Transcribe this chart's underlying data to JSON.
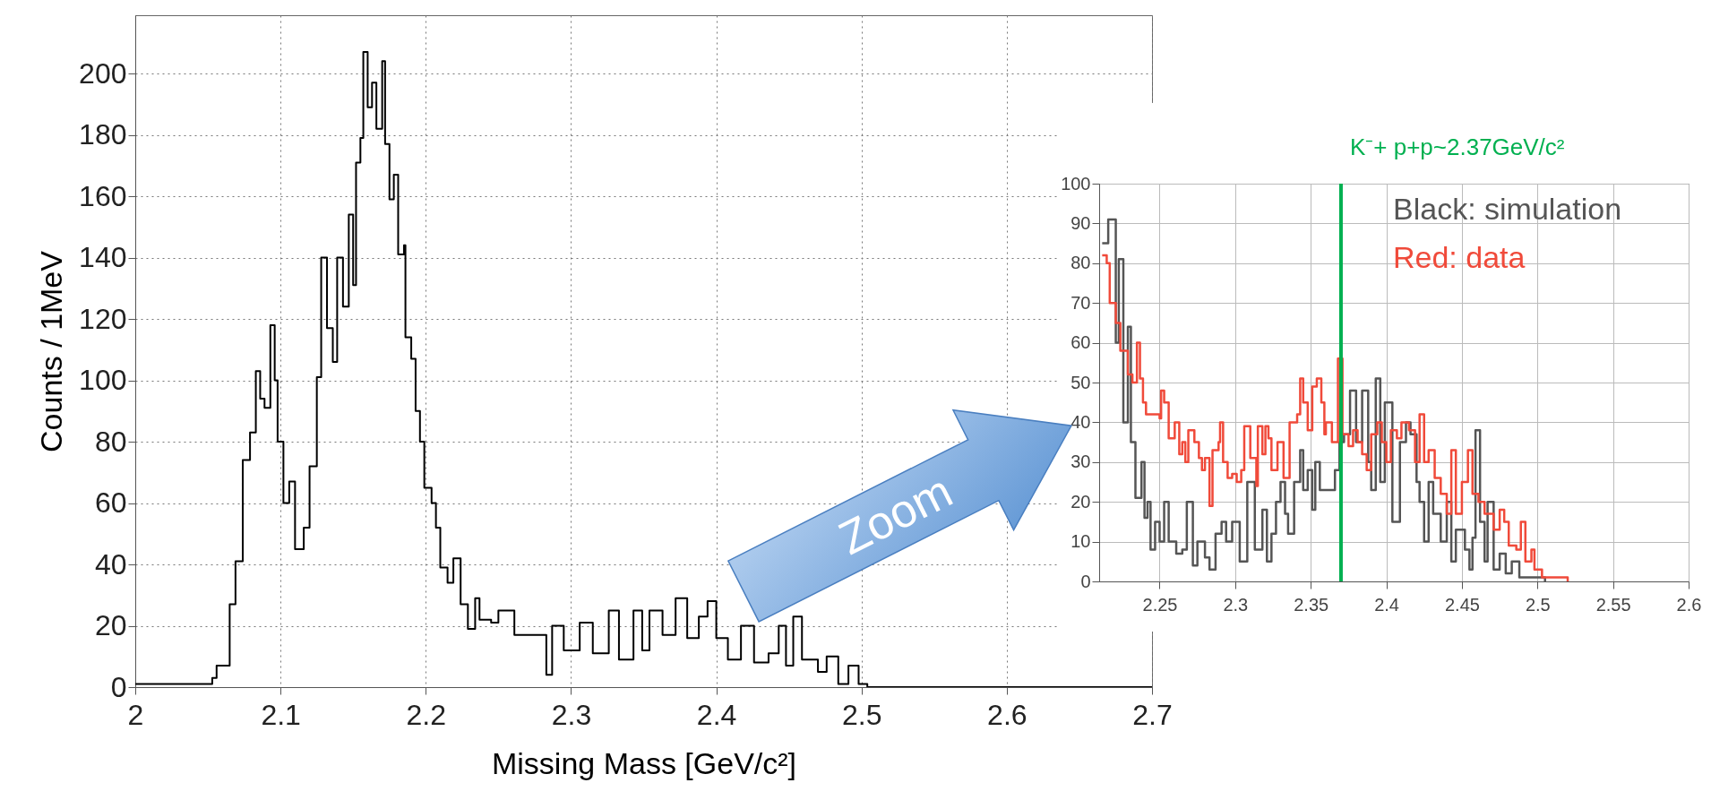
{
  "chart_data": [
    {
      "type": "step",
      "xlabel": "Missing Mass [GeV/c²]",
      "ylabel": "Counts /    1MeV",
      "x": [
        2,
        2.053,
        2.056,
        2.061,
        2.065,
        2.069,
        2.074,
        2.079,
        2.083,
        2.086,
        2.089,
        2.093,
        2.096,
        2.098,
        2.102,
        2.106,
        2.11,
        2.116,
        2.12,
        2.125,
        2.128,
        2.132,
        2.136,
        2.139,
        2.143,
        2.147,
        2.15,
        2.152,
        2.155,
        2.157,
        2.16,
        2.163,
        2.166,
        2.17,
        2.172,
        2.175,
        2.178,
        2.181,
        2.185,
        2.186,
        2.19,
        2.193,
        2.196,
        2.199,
        2.204,
        2.207,
        2.21,
        2.215,
        2.219,
        2.224,
        2.229,
        2.234,
        2.237,
        2.245,
        2.25,
        2.261,
        2.272,
        2.283,
        2.287,
        2.295,
        2.306,
        2.315,
        2.326,
        2.333,
        2.343,
        2.349,
        2.354,
        2.363,
        2.372,
        2.38,
        2.388,
        2.394,
        2.4,
        2.408,
        2.417,
        2.426,
        2.436,
        2.443,
        2.448,
        2.453,
        2.459,
        2.47,
        2.476,
        2.484,
        2.491,
        2.498,
        2.504,
        2.7
      ],
      "series": [
        {
          "color": "#000000",
          "values": [
            1,
            3,
            7,
            7,
            27,
            41,
            74,
            83,
            103,
            94,
            91,
            118,
            100,
            80,
            60,
            67,
            45,
            52,
            72,
            101,
            140,
            117,
            106,
            140,
            124,
            154,
            131,
            171,
            179,
            207,
            189,
            197,
            182,
            204,
            177,
            159,
            167,
            141,
            144,
            114,
            107,
            90,
            80,
            65,
            60,
            52,
            39,
            34,
            42,
            27,
            19,
            29,
            22,
            21,
            25,
            17,
            17,
            4,
            20,
            12,
            21,
            11,
            25,
            9,
            25,
            12,
            25,
            17,
            29,
            16,
            23,
            28,
            16,
            9,
            20,
            8,
            11,
            20,
            7,
            23,
            9,
            5,
            10,
            1,
            7,
            1,
            0,
            0
          ]
        }
      ],
      "xlim": [
        2,
        2.7
      ],
      "xticks": [
        2,
        2.1,
        2.2,
        2.3,
        2.4,
        2.5,
        2.6,
        2.7
      ],
      "ylim": [
        0,
        219
      ],
      "yticks": [
        0,
        20,
        40,
        60,
        80,
        100,
        120,
        140,
        160,
        180,
        200
      ],
      "grid": true,
      "annotations": [
        "Zoom"
      ]
    },
    {
      "type": "step",
      "legend": "top right",
      "series": [
        {
          "name": "Black: simulation",
          "color": "#555555",
          "x": [
            2.212,
            2.216,
            2.221,
            2.223,
            2.226,
            2.229,
            2.231,
            2.234,
            2.238,
            2.24,
            2.242,
            2.244,
            2.247,
            2.25,
            2.253,
            2.256,
            2.261,
            2.265,
            2.268,
            2.272,
            2.275,
            2.28,
            2.283,
            2.287,
            2.291,
            2.294,
            2.298,
            2.303,
            2.308,
            2.313,
            2.318,
            2.321,
            2.324,
            2.327,
            2.33,
            2.333,
            2.335,
            2.339,
            2.343,
            2.345,
            2.348,
            2.351,
            2.353,
            2.356,
            2.361,
            2.366,
            2.369,
            2.372,
            2.376,
            2.38,
            2.384,
            2.388,
            2.39,
            2.393,
            2.396,
            2.399,
            2.404,
            2.409,
            2.413,
            2.416,
            2.42,
            2.422,
            2.425,
            2.428,
            2.431,
            2.436,
            2.44,
            2.443,
            2.446,
            2.452,
            2.455,
            2.457,
            2.459,
            2.462,
            2.465,
            2.467,
            2.471,
            2.475,
            2.479,
            2.483,
            2.488,
            2.492,
            2.496,
            2.5,
            2.505
          ],
          "values": [
            85,
            91,
            60,
            81,
            40,
            64,
            35,
            21,
            30,
            16,
            20,
            8,
            15,
            10,
            20,
            10,
            7,
            8,
            20,
            4,
            10,
            6,
            3,
            12,
            15,
            10,
            15,
            5,
            25,
            8,
            18,
            5,
            12,
            20,
            25,
            17,
            12,
            25,
            33,
            23,
            28,
            18,
            30,
            23,
            23,
            28,
            35,
            37,
            48,
            35,
            48,
            30,
            23,
            51,
            25,
            45,
            15,
            35,
            40,
            37,
            25,
            20,
            10,
            25,
            17,
            10,
            20,
            5,
            13,
            8,
            3,
            11,
            38,
            15,
            5,
            20,
            3,
            7,
            2,
            5,
            1,
            1,
            1,
            1,
            0
          ]
        },
        {
          "name": "Red: data",
          "color": "#f04a3a",
          "x": [
            2.212,
            2.215,
            2.217,
            2.221,
            2.224,
            2.229,
            2.232,
            2.235,
            2.237,
            2.239,
            2.241,
            2.247,
            2.25,
            2.251,
            2.253,
            2.256,
            2.26,
            2.263,
            2.265,
            2.267,
            2.269,
            2.273,
            2.276,
            2.278,
            2.28,
            2.283,
            2.285,
            2.289,
            2.29,
            2.292,
            2.295,
            2.298,
            2.301,
            2.304,
            2.306,
            2.31,
            2.314,
            2.315,
            2.318,
            2.32,
            2.322,
            2.324,
            2.328,
            2.332,
            2.336,
            2.341,
            2.343,
            2.345,
            2.348,
            2.351,
            2.354,
            2.357,
            2.359,
            2.36,
            2.364,
            2.368,
            2.371,
            2.375,
            2.378,
            2.381,
            2.384,
            2.387,
            2.39,
            2.394,
            2.397,
            2.4,
            2.403,
            2.407,
            2.41,
            2.415,
            2.419,
            2.422,
            2.425,
            2.428,
            2.432,
            2.436,
            2.44,
            2.443,
            2.446,
            2.45,
            2.454,
            2.457,
            2.461,
            2.465,
            2.471,
            2.475,
            2.478,
            2.481,
            2.486,
            2.489,
            2.492,
            2.496,
            2.498,
            2.503,
            2.509,
            2.517,
            2.52
          ],
          "values": [
            82,
            80,
            70,
            65,
            58,
            52,
            50,
            60,
            51,
            45,
            42,
            42,
            41,
            48,
            45,
            36,
            40,
            32,
            35,
            30,
            38,
            35,
            31,
            28,
            31,
            19,
            33,
            35,
            40,
            30,
            26,
            27,
            25,
            28,
            39,
            31,
            24,
            39,
            32,
            39,
            36,
            28,
            35,
            26,
            40,
            42,
            51,
            45,
            38,
            49,
            51,
            45,
            37,
            40,
            35,
            56,
            37,
            34,
            38,
            35,
            32,
            28,
            37,
            40,
            35,
            30,
            38,
            36,
            40,
            38,
            30,
            42,
            30,
            33,
            26,
            22,
            17,
            33,
            17,
            25,
            33,
            22,
            20,
            17,
            13,
            18,
            15,
            9,
            8,
            15,
            5,
            8,
            3,
            1,
            1,
            1,
            0
          ]
        }
      ],
      "xlim": [
        2.21,
        2.6
      ],
      "xticks": [
        2.25,
        2.3,
        2.35,
        2.4,
        2.45,
        2.5,
        2.55,
        2.6
      ],
      "ylim": [
        0,
        100
      ],
      "yticks": [
        0,
        10,
        20,
        30,
        40,
        50,
        60,
        70,
        80,
        90,
        100
      ],
      "grid": true,
      "ref_lines": [
        {
          "axis": "x",
          "value": 2.37,
          "label": "K⁻+ p+p~2.37GeV/c²",
          "color": "#00b050"
        }
      ]
    }
  ]
}
